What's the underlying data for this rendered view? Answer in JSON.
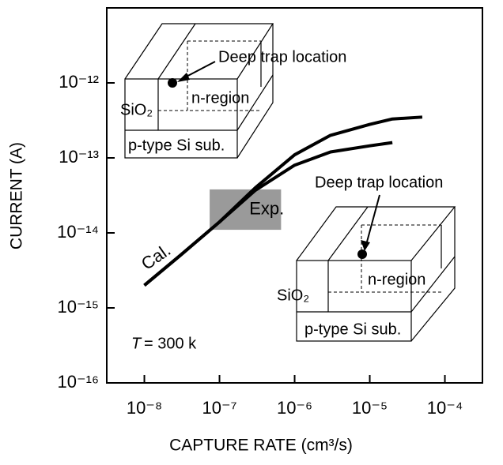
{
  "chart_data": {
    "type": "line",
    "log_x": true,
    "log_y": true,
    "xlabel": "CAPTURE RATE (cm³/s)",
    "ylabel": "CURRENT (A)",
    "xlim": [
      3.16e-09,
      0.000316
    ],
    "ylim": [
      1e-16,
      1e-11
    ],
    "xticks": [
      {
        "value": 1e-08,
        "label": "10⁻⁸"
      },
      {
        "value": 1e-07,
        "label": "10⁻⁷"
      },
      {
        "value": 1e-06,
        "label": "10⁻⁶"
      },
      {
        "value": 1e-05,
        "label": "10⁻⁵"
      },
      {
        "value": 0.0001,
        "label": "10⁻⁴"
      }
    ],
    "yticks": [
      {
        "value": 1e-16,
        "label": "10⁻¹⁶"
      },
      {
        "value": 1e-15,
        "label": "10⁻¹⁵"
      },
      {
        "value": 1e-14,
        "label": "10⁻¹⁴"
      },
      {
        "value": 1e-13,
        "label": "10⁻¹³"
      },
      {
        "value": 1e-12,
        "label": "10⁻¹²"
      }
    ],
    "x": [
      1e-08,
      3e-08,
      1e-07,
      3e-07,
      1e-06,
      3e-06,
      1e-05,
      2e-05,
      5e-05
    ],
    "series": [
      {
        "color": "#000000",
        "values": [
          2e-15,
          5e-15,
          1.4e-14,
          4e-14,
          1.1e-13,
          2e-13,
          2.8e-13,
          3.3e-13,
          3.5e-13
        ]
      },
      {
        "color": "#000000",
        "values": [
          2e-15,
          5e-15,
          1.4e-14,
          3.7e-14,
          8e-14,
          1.2e-13,
          1.45e-13,
          1.6e-13,
          null
        ]
      }
    ],
    "exp_region": {
      "x": [
        7.4e-08,
        6.6e-07
      ],
      "y": [
        1.1e-14,
        3.8e-14
      ],
      "label": "Exp.",
      "color": "#888888"
    },
    "annotations": {
      "cal": "Cal.",
      "temperature_symbol": "T",
      "temperature_value": "= 300 k"
    },
    "insets": [
      {
        "trap": "Deep trap location",
        "n_region": "n-region",
        "oxide": "SiO₂",
        "substrate": "p-type Si sub."
      },
      {
        "trap": "Deep trap location",
        "n_region": "n-region",
        "oxide": "SiO₂",
        "substrate": "p-type Si sub."
      }
    ]
  }
}
